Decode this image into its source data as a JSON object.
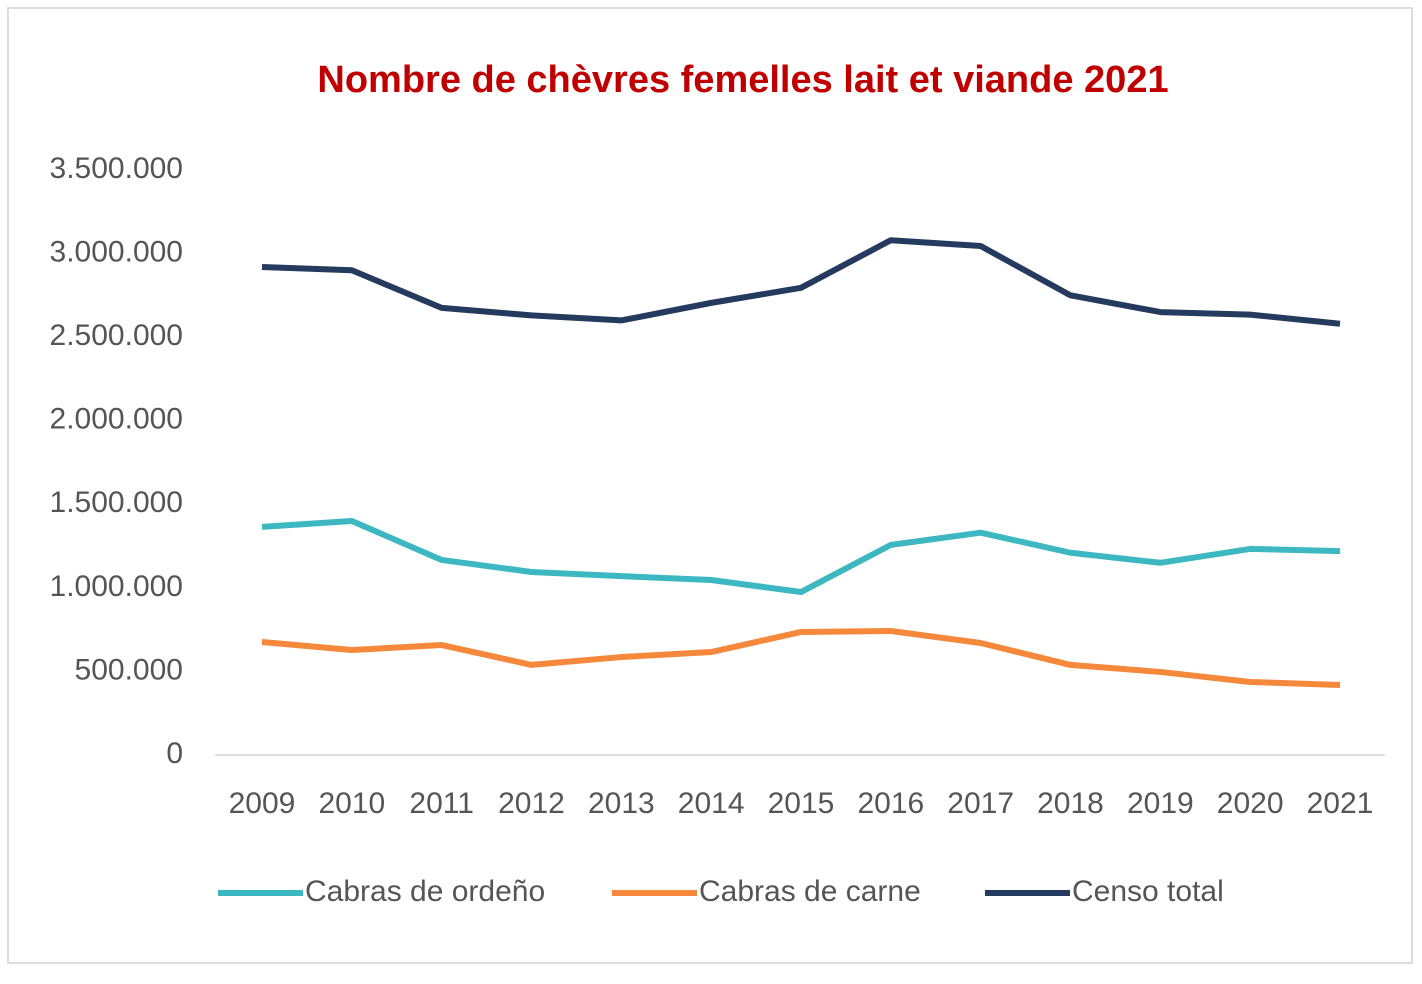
{
  "chart_data": {
    "type": "line",
    "title": "Nombre de chèvres femelles lait et viande 2021",
    "categories": [
      "2009",
      "2010",
      "2011",
      "2012",
      "2013",
      "2014",
      "2015",
      "2016",
      "2017",
      "2018",
      "2019",
      "2020",
      "2021"
    ],
    "series": [
      {
        "name": "Cabras de ordeño",
        "color": "#3db8c3",
        "values": [
          1365000,
          1400000,
          1167000,
          1095000,
          1070000,
          1047000,
          975000,
          1257000,
          1330000,
          1210000,
          1150000,
          1233000,
          1220000
        ]
      },
      {
        "name": "Cabras de carne",
        "color": "#f5883a",
        "values": [
          676000,
          628000,
          658000,
          539000,
          586000,
          616000,
          736000,
          742000,
          670000,
          539000,
          497000,
          437000,
          419000
        ]
      },
      {
        "name": "Censo total",
        "color": "#243a5e",
        "values": [
          2920000,
          2900000,
          2675000,
          2630000,
          2600000,
          2705000,
          2795000,
          3080000,
          3045000,
          2750000,
          2650000,
          2635000,
          2580000
        ]
      }
    ],
    "ylim": [
      0,
      3500000
    ],
    "yticks": [
      0,
      {
        "value": 500000,
        "label": "500.000"
      },
      {
        "value": 1000000,
        "label": "1.000.000"
      },
      {
        "value": 1500000,
        "label": "1.500.000"
      },
      {
        "value": 2000000,
        "label": "2.000.000"
      },
      {
        "value": 2500000,
        "label": "2.500.000"
      },
      {
        "value": 3000000,
        "label": "3.000.000"
      },
      {
        "value": 3500000,
        "label": "3.500.000"
      }
    ],
    "grid": false,
    "legend": "bottom"
  }
}
